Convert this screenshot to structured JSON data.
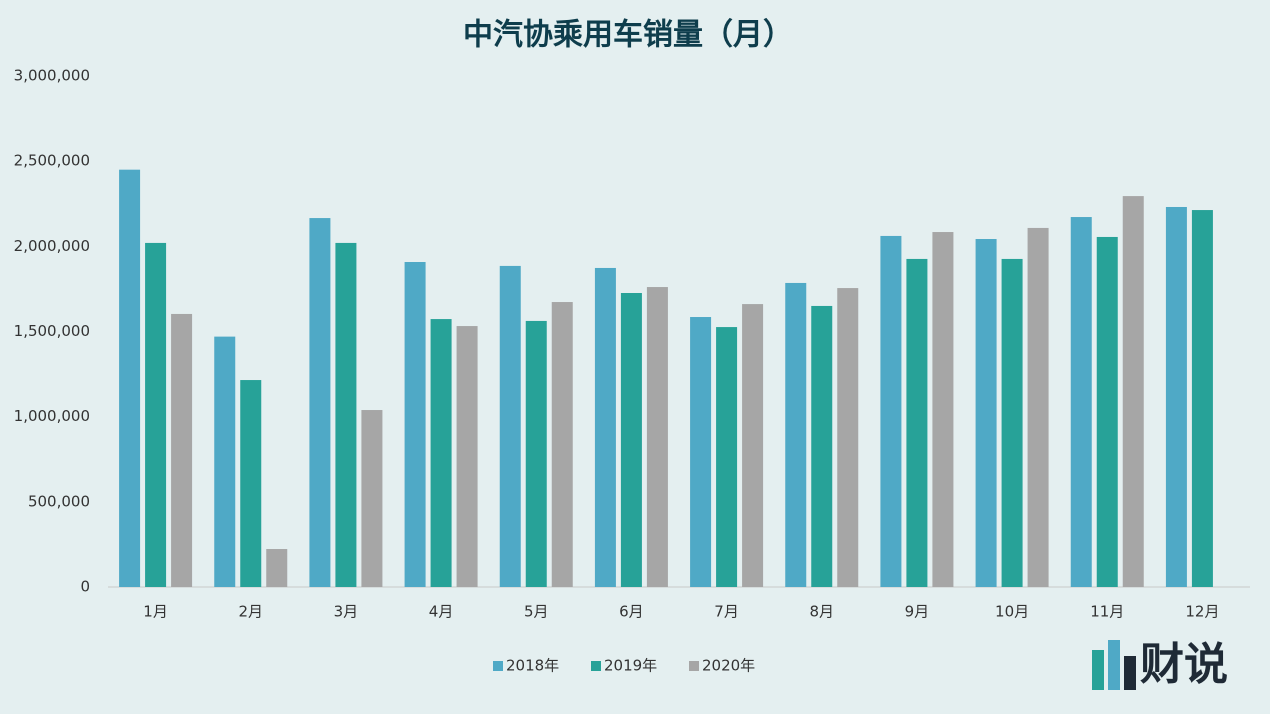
{
  "chart_data": {
    "type": "bar",
    "title": "中汽协乘用车销量（月）",
    "categories": [
      "1月",
      "2月",
      "3月",
      "4月",
      "5月",
      "6月",
      "7月",
      "8月",
      "9月",
      "10月",
      "11月",
      "12月"
    ],
    "series": [
      {
        "name": "2018年",
        "color": "#4fa9c6",
        "values": [
          2450000,
          1470000,
          2166000,
          1908000,
          1885000,
          1873000,
          1585000,
          1785000,
          2061000,
          2043000,
          2172000,
          2231000
        ]
      },
      {
        "name": "2019年",
        "color": "#27a298",
        "values": [
          2020000,
          1215000,
          2020000,
          1573000,
          1562000,
          1726000,
          1526000,
          1650000,
          1926000,
          1926000,
          2055000,
          2213000
        ]
      },
      {
        "name": "2020年",
        "color": "#a6a6a6",
        "values": [
          1603000,
          223000,
          1039000,
          1532000,
          1673000,
          1761000,
          1661000,
          1755000,
          2084000,
          2108000,
          2295000,
          null
        ]
      }
    ],
    "ylim": [
      0,
      3000000
    ],
    "yticks": [
      0,
      {
        "value": 500000,
        "label": "500,000"
      },
      {
        "value": 1000000,
        "label": "1,000,000"
      },
      {
        "value": 1500000,
        "label": "1,500,000"
      },
      {
        "value": 2000000,
        "label": "2,000,000"
      },
      {
        "value": 2500000,
        "label": "2,500,000"
      },
      {
        "value": 3000000,
        "label": "3,000,000"
      }
    ],
    "grid": false,
    "legend": "bottom"
  },
  "logo": "财说"
}
